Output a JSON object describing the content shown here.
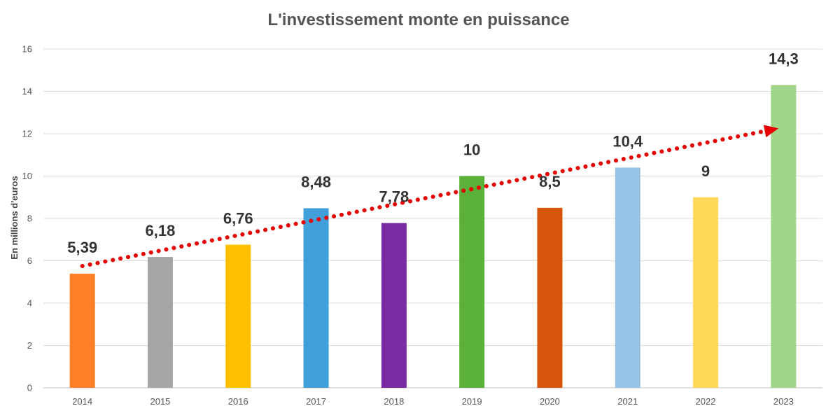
{
  "chart_data": {
    "type": "bar",
    "title": "L'investissement monte en puissance",
    "ylabel": "En millions d'euros",
    "xlabel": "",
    "categories": [
      "2014",
      "2015",
      "2016",
      "2017",
      "2018",
      "2019",
      "2020",
      "2021",
      "2022",
      "2023"
    ],
    "values": [
      5.39,
      6.18,
      6.76,
      8.48,
      7.78,
      10,
      8.5,
      10.4,
      9,
      14.3
    ],
    "data_labels": [
      "5,39",
      "6,18",
      "6,76",
      "8,48",
      "7,78",
      "10",
      "8,5",
      "10,4",
      "9",
      "14,3"
    ],
    "colors": [
      "#FF7F27",
      "#A5A5A5",
      "#FFC000",
      "#409FD8",
      "#7A2AA3",
      "#5BB03A",
      "#D9540B",
      "#97C3E6",
      "#FFD85A",
      "#A0D58A"
    ],
    "ylim": [
      0,
      16
    ],
    "yticks": [
      0,
      2,
      4,
      6,
      8,
      10,
      12,
      14,
      16
    ],
    "ytick_labels": [
      "0",
      "2",
      "4",
      "6",
      "8",
      "10",
      "12",
      "14",
      "16"
    ],
    "grid": true,
    "legend": "none",
    "trend_arrow": {
      "style": "dotted",
      "color": "#E60000",
      "start": {
        "x": "2014",
        "y": 5.75
      },
      "end": {
        "x": "2023",
        "y": 12.2
      }
    }
  }
}
